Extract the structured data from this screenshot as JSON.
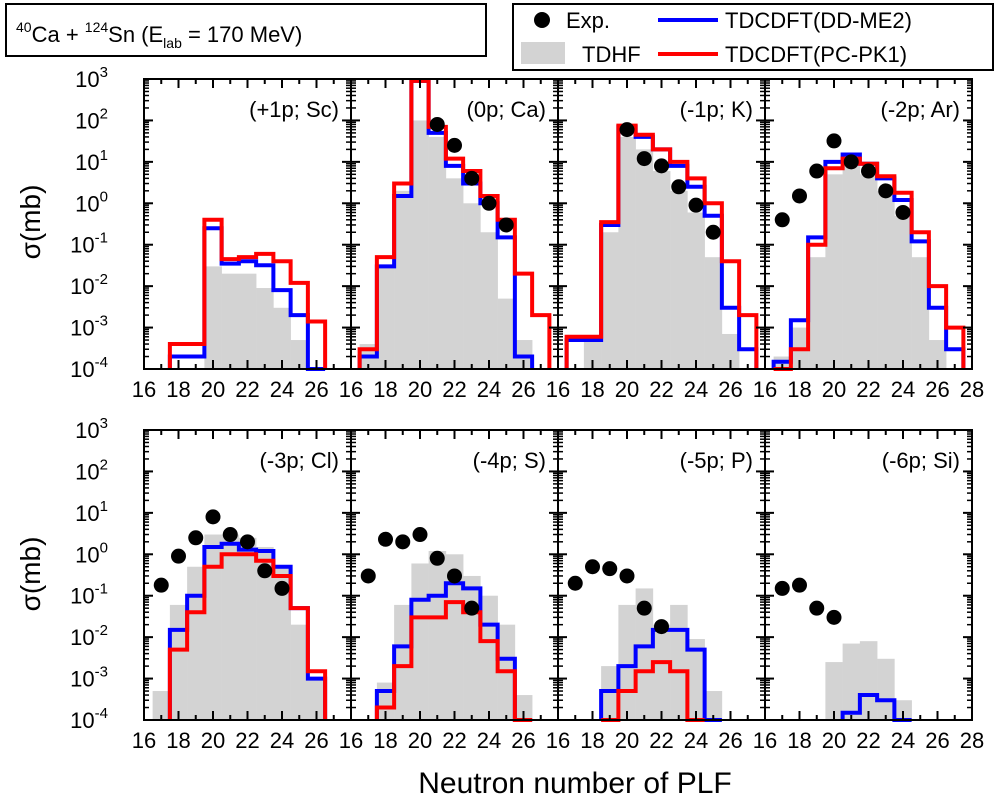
{
  "title": {
    "proj_mass": "40",
    "proj_sym": "Ca + ",
    "targ_mass": "124",
    "targ_sym": "Sn (E",
    "sub": "lab",
    "rest": " = 170 MeV)"
  },
  "xlabel": "Neutron number of PLF",
  "ylabel": "σ(mb)",
  "legend": {
    "exp": "Exp.",
    "tdhf": "TDHF",
    "ddme2": "TDCDFT(DD-ME2)",
    "pcpk1": "TDCDFT(PC-PK1)"
  },
  "colors": {
    "exp": "#000000",
    "tdhf": "#d3d3d3",
    "ddme2": "#0000ff",
    "pcpk1": "#ff0000"
  },
  "chart_data": {
    "type": "bar",
    "y_scale": "log",
    "ylim": [
      0.0001,
      1000
    ],
    "y_ticks": [
      {
        "base": "10",
        "exp": "-4"
      },
      {
        "base": "10",
        "exp": "-3"
      },
      {
        "base": "10",
        "exp": "-2"
      },
      {
        "base": "10",
        "exp": "-1"
      },
      {
        "base": "10",
        "exp": "0"
      },
      {
        "base": "10",
        "exp": "1"
      },
      {
        "base": "10",
        "exp": "2"
      },
      {
        "base": "10",
        "exp": "3"
      }
    ],
    "x_ticks": [
      "16",
      "18",
      "20",
      "22",
      "24",
      "26",
      "28"
    ],
    "xlim": [
      16,
      28
    ],
    "panels": [
      {
        "label": "(+1p; Sc)",
        "exp": [],
        "tdhf": [
          [
            19,
            2e-05
          ],
          [
            20,
            0.03
          ],
          [
            21,
            0.02
          ],
          [
            22,
            0.02
          ],
          [
            23,
            0.009
          ],
          [
            24,
            0.003
          ],
          [
            25,
            0.0005
          ],
          [
            26,
            5e-05
          ]
        ],
        "ddme2": [
          [
            18,
            0.0002
          ],
          [
            19,
            0.0002
          ],
          [
            20,
            0.25
          ],
          [
            21,
            0.035
          ],
          [
            22,
            0.04
          ],
          [
            23,
            0.032
          ],
          [
            24,
            0.008
          ],
          [
            25,
            0.002
          ],
          [
            26,
            5e-05
          ]
        ],
        "pcpk1": [
          [
            18,
            0.0004
          ],
          [
            19,
            0.0004
          ],
          [
            20,
            0.4
          ],
          [
            21,
            0.045
          ],
          [
            22,
            0.05
          ],
          [
            23,
            0.06
          ],
          [
            24,
            0.04
          ],
          [
            25,
            0.012
          ],
          [
            26,
            0.0014
          ]
        ]
      },
      {
        "label": "(0p; Ca)",
        "exp": [
          [
            21,
            80
          ],
          [
            22,
            25
          ],
          [
            23,
            4
          ],
          [
            24,
            1
          ],
          [
            25,
            0.3
          ]
        ],
        "tdhf": [
          [
            17,
            0.0004
          ],
          [
            18,
            0.03
          ],
          [
            19,
            2
          ],
          [
            20,
            100
          ],
          [
            21,
            40
          ],
          [
            22,
            4
          ],
          [
            23,
            1
          ],
          [
            24,
            0.2
          ],
          [
            25,
            0.005
          ],
          [
            26,
            0.0005
          ]
        ],
        "ddme2": [
          [
            17,
            0.0002
          ],
          [
            18,
            0.03
          ],
          [
            19,
            1.5
          ],
          [
            20,
            900
          ],
          [
            21,
            50
          ],
          [
            22,
            8
          ],
          [
            23,
            3
          ],
          [
            24,
            1
          ],
          [
            25,
            0.15
          ],
          [
            26,
            0.0002
          ]
        ],
        "pcpk1": [
          [
            17,
            0.0003
          ],
          [
            18,
            0.05
          ],
          [
            19,
            3
          ],
          [
            20,
            900
          ],
          [
            21,
            70
          ],
          [
            22,
            12
          ],
          [
            23,
            6
          ],
          [
            24,
            1.5
          ],
          [
            25,
            0.4
          ],
          [
            26,
            0.02
          ],
          [
            27,
            0.002
          ]
        ]
      },
      {
        "label": "(-1p; K)",
        "exp": [
          [
            20,
            60
          ],
          [
            21,
            12
          ],
          [
            22,
            8
          ],
          [
            23,
            2.5
          ],
          [
            24,
            0.9
          ],
          [
            25,
            0.2
          ]
        ],
        "tdhf": [
          [
            17,
            5e-05
          ],
          [
            18,
            0.0005
          ],
          [
            19,
            0.2
          ],
          [
            20,
            40
          ],
          [
            21,
            20
          ],
          [
            22,
            6
          ],
          [
            23,
            2
          ],
          [
            24,
            0.6
          ],
          [
            25,
            0.05
          ],
          [
            26,
            0.0007
          ]
        ],
        "ddme2": [
          [
            17,
            0.0005
          ],
          [
            18,
            0.0005
          ],
          [
            19,
            0.3
          ],
          [
            20,
            70
          ],
          [
            21,
            40
          ],
          [
            22,
            20
          ],
          [
            23,
            8
          ],
          [
            24,
            2.5
          ],
          [
            25,
            0.5
          ],
          [
            26,
            0.003
          ],
          [
            27,
            0.0003
          ]
        ],
        "pcpk1": [
          [
            17,
            0.0006
          ],
          [
            18,
            0.0006
          ],
          [
            19,
            0.35
          ],
          [
            20,
            75
          ],
          [
            21,
            45
          ],
          [
            22,
            20
          ],
          [
            23,
            10
          ],
          [
            24,
            4
          ],
          [
            25,
            1
          ],
          [
            26,
            0.04
          ],
          [
            27,
            0.002
          ]
        ]
      },
      {
        "label": "(-2p; Ar)",
        "exp": [
          [
            17,
            0.4
          ],
          [
            18,
            1.5
          ],
          [
            19,
            6
          ],
          [
            20,
            32
          ],
          [
            21,
            10
          ],
          [
            22,
            6
          ],
          [
            23,
            2
          ],
          [
            24,
            0.6
          ]
        ],
        "tdhf": [
          [
            17,
            0.0002
          ],
          [
            18,
            0.001
          ],
          [
            19,
            0.05
          ],
          [
            20,
            5
          ],
          [
            21,
            8
          ],
          [
            22,
            5
          ],
          [
            23,
            2
          ],
          [
            24,
            0.5
          ],
          [
            25,
            0.05
          ],
          [
            26,
            0.0005
          ],
          [
            27,
            0.0001
          ]
        ],
        "ddme2": [
          [
            17,
            0.00015
          ],
          [
            18,
            0.0015
          ],
          [
            19,
            0.15
          ],
          [
            20,
            10
          ],
          [
            21,
            15
          ],
          [
            22,
            9
          ],
          [
            23,
            4
          ],
          [
            24,
            1.2
          ],
          [
            25,
            0.12
          ],
          [
            26,
            0.003
          ],
          [
            27,
            0.0003
          ]
        ],
        "pcpk1": [
          [
            17,
            4e-05
          ],
          [
            18,
            0.0003
          ],
          [
            19,
            0.1
          ],
          [
            20,
            7
          ],
          [
            21,
            12
          ],
          [
            22,
            9
          ],
          [
            23,
            4.5
          ],
          [
            24,
            1.8
          ],
          [
            25,
            0.2
          ],
          [
            26,
            0.01
          ],
          [
            27,
            0.001
          ]
        ]
      },
      {
        "label": "(-3p; Cl)",
        "exp": [
          [
            17,
            0.18
          ],
          [
            18,
            0.9
          ],
          [
            19,
            2.5
          ],
          [
            20,
            8
          ],
          [
            21,
            3
          ],
          [
            22,
            2
          ],
          [
            23,
            0.4
          ],
          [
            24,
            0.15
          ]
        ],
        "tdhf": [
          [
            17,
            0.0005
          ],
          [
            18,
            0.06
          ],
          [
            19,
            0.5
          ],
          [
            20,
            3
          ],
          [
            21,
            3
          ],
          [
            22,
            2.5
          ],
          [
            23,
            1.5
          ],
          [
            24,
            0.5
          ],
          [
            25,
            0.02
          ],
          [
            26,
            0.001
          ]
        ],
        "ddme2": [
          [
            18,
            0.015
          ],
          [
            19,
            0.1
          ],
          [
            20,
            1.5
          ],
          [
            21,
            1.8
          ],
          [
            22,
            1.3
          ],
          [
            23,
            1.2
          ],
          [
            24,
            0.5
          ],
          [
            25,
            0.05
          ],
          [
            26,
            0.001
          ]
        ],
        "pcpk1": [
          [
            18,
            0.005
          ],
          [
            19,
            0.04
          ],
          [
            20,
            0.5
          ],
          [
            21,
            1
          ],
          [
            22,
            1
          ],
          [
            23,
            0.7
          ],
          [
            24,
            0.3
          ],
          [
            25,
            0.05
          ],
          [
            26,
            0.0015
          ]
        ]
      },
      {
        "label": "(-4p; S)",
        "exp": [
          [
            17,
            0.3
          ],
          [
            18,
            2.3
          ],
          [
            19,
            2
          ],
          [
            20,
            3
          ],
          [
            21,
            0.8
          ],
          [
            22,
            0.3
          ],
          [
            23,
            0.05
          ]
        ],
        "tdhf": [
          [
            17,
            0.0001
          ],
          [
            18,
            0.0008
          ],
          [
            19,
            0.06
          ],
          [
            20,
            0.6
          ],
          [
            21,
            1.2
          ],
          [
            22,
            1
          ],
          [
            23,
            0.3
          ],
          [
            24,
            0.1
          ],
          [
            25,
            0.02
          ],
          [
            26,
            0.0004
          ]
        ],
        "ddme2": [
          [
            18,
            0.0005
          ],
          [
            19,
            0.006
          ],
          [
            20,
            0.08
          ],
          [
            21,
            0.1
          ],
          [
            22,
            0.2
          ],
          [
            23,
            0.15
          ],
          [
            24,
            0.02
          ],
          [
            25,
            0.003
          ],
          [
            26,
            5e-05
          ]
        ],
        "pcpk1": [
          [
            18,
            0.0002
          ],
          [
            19,
            0.002
          ],
          [
            20,
            0.03
          ],
          [
            21,
            0.03
          ],
          [
            22,
            0.07
          ],
          [
            23,
            0.04
          ],
          [
            24,
            0.008
          ],
          [
            25,
            0.0015
          ],
          [
            26,
            5e-05
          ]
        ]
      },
      {
        "label": "(-5p; P)",
        "exp": [
          [
            17,
            0.2
          ],
          [
            18,
            0.5
          ],
          [
            19,
            0.45
          ],
          [
            20,
            0.3
          ],
          [
            21,
            0.05
          ],
          [
            22,
            0.018
          ]
        ],
        "tdhf": [
          [
            19,
            0.002
          ],
          [
            20,
            0.06
          ],
          [
            21,
            0.15
          ],
          [
            22,
            0.02
          ],
          [
            23,
            0.06
          ],
          [
            24,
            0.009
          ],
          [
            25,
            0.0005
          ]
        ],
        "ddme2": [
          [
            19,
            0.0005
          ],
          [
            20,
            0.002
          ],
          [
            21,
            0.006
          ],
          [
            22,
            0.015
          ],
          [
            23,
            0.015
          ],
          [
            24,
            0.005
          ],
          [
            25,
            0.0001
          ]
        ],
        "pcpk1": [
          [
            19,
            0.0001
          ],
          [
            20,
            0.0005
          ],
          [
            21,
            0.0015
          ],
          [
            22,
            0.0025
          ],
          [
            23,
            0.0015
          ],
          [
            24,
            0.0001
          ]
        ]
      },
      {
        "label": "(-6p; Si)",
        "exp": [
          [
            17,
            0.15
          ],
          [
            18,
            0.18
          ],
          [
            19,
            0.05
          ],
          [
            20,
            0.03
          ]
        ],
        "tdhf": [
          [
            20,
            0.0025
          ],
          [
            21,
            0.007
          ],
          [
            22,
            0.008
          ],
          [
            23,
            0.003
          ],
          [
            24,
            0.0003
          ]
        ],
        "ddme2": [
          [
            21,
            0.00015
          ],
          [
            22,
            0.0004
          ],
          [
            23,
            0.0003
          ],
          [
            24,
            0.0001
          ]
        ],
        "pcpk1": []
      }
    ]
  }
}
